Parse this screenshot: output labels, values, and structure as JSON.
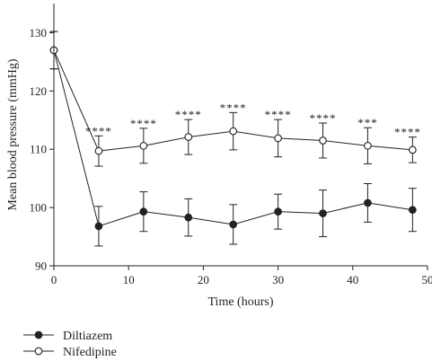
{
  "chart_data": {
    "type": "line",
    "xlabel": "Time (hours)",
    "ylabel": "Mean blood pressure (mmHg)",
    "xlim": [
      0,
      50
    ],
    "ylim": [
      90,
      135
    ],
    "xticks": [
      "0",
      "10",
      "20",
      "30",
      "40",
      "50"
    ],
    "yticks": [
      "90",
      "100",
      "110",
      "120",
      "130"
    ],
    "grid": false,
    "legend_position": "bottom-left, below plot",
    "series": [
      {
        "name": "Diltiazem",
        "marker": "filled-circle",
        "color": "#222222",
        "x": [
          0,
          6,
          12,
          18,
          24,
          30,
          36,
          42,
          48
        ],
        "y": [
          127.0,
          96.8,
          99.3,
          98.3,
          97.1,
          99.3,
          99.0,
          100.8,
          99.6
        ],
        "err": [
          3.2,
          3.4,
          3.4,
          3.2,
          3.4,
          3.0,
          4.0,
          3.3,
          3.7
        ]
      },
      {
        "name": "Nifedipine",
        "marker": "open-circle",
        "color": "#222222",
        "x": [
          0,
          6,
          12,
          18,
          24,
          30,
          36,
          42,
          48
        ],
        "y": [
          127.0,
          109.7,
          110.6,
          112.1,
          113.1,
          111.9,
          111.5,
          110.6,
          109.9
        ],
        "err": [
          3.2,
          2.6,
          3.0,
          3.0,
          3.2,
          3.2,
          3.0,
          3.1,
          2.2
        ]
      }
    ],
    "annotations": [
      {
        "x": 6,
        "text": "****"
      },
      {
        "x": 12,
        "text": "****"
      },
      {
        "x": 18,
        "text": "****"
      },
      {
        "x": 24,
        "text": "****"
      },
      {
        "x": 30,
        "text": "****"
      },
      {
        "x": 36,
        "text": "****"
      },
      {
        "x": 42,
        "text": "***"
      },
      {
        "x": 48,
        "text": "****"
      }
    ]
  }
}
